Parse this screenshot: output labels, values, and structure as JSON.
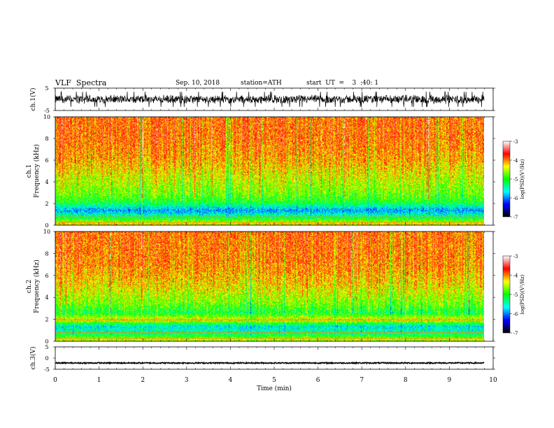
{
  "header": {
    "title": "VLF  Spectra",
    "date": "Sep. 10, 2018",
    "station": "station=ATH",
    "start_ut": "start  UT  =    3  :40: 1"
  },
  "colors": {
    "colormap": [
      "#000000",
      "#0000ff",
      "#00ffff",
      "#00ff00",
      "#ffff00",
      "#ff0000",
      "#ffffff"
    ],
    "background": "#ffffff",
    "waveform": "#000000"
  },
  "chart_data": [
    {
      "type": "line",
      "name": "ch1-waveform",
      "ylabel": "ch.1(V)",
      "ylim": [
        -5,
        5
      ],
      "y_ticks": [
        "5",
        "-5"
      ],
      "x": [
        0,
        10
      ],
      "description_of_signal": "",
      "noise_amplitude_v": 1.8,
      "offset_v": 0.0
    },
    {
      "type": "heatmap",
      "name": "ch1-spectrogram",
      "ylabel": "ch.1\nFrequency  (kHz)",
      "ylabel_lines": [
        "ch.1",
        "Frequency  (kHz)"
      ],
      "ylim": [
        0,
        10
      ],
      "y_ticks": [
        "0",
        "2",
        "4",
        "6",
        "8",
        "10"
      ],
      "x_range": [
        0,
        9.8
      ],
      "colorbar": {
        "label": "log(PSD)(V²/Hz)",
        "ticks": [
          "-3",
          "-4",
          "-5",
          "-6",
          "-7"
        ],
        "range": [
          -7,
          -3
        ]
      },
      "typical_levels": [
        {
          "f_khz": 0.2,
          "log_psd": -4.3
        },
        {
          "f_khz": 0.8,
          "log_psd": -5.3
        },
        {
          "f_khz": 1.4,
          "log_psd": -5.9
        },
        {
          "f_khz": 2.2,
          "log_psd": -5.0
        },
        {
          "f_khz": 3.0,
          "log_psd": -4.7
        },
        {
          "f_khz": 4.5,
          "log_psd": -4.4
        },
        {
          "f_khz": 6.0,
          "log_psd": -4.1
        },
        {
          "f_khz": 8.0,
          "log_psd": -3.9
        },
        {
          "f_khz": 10.0,
          "log_psd": -3.9
        }
      ]
    },
    {
      "type": "heatmap",
      "name": "ch2-spectrogram",
      "ylabel_lines": [
        "ch.2",
        "Frequency  (kHz)"
      ],
      "ylim": [
        0,
        10
      ],
      "y_ticks": [
        "0",
        "2",
        "4",
        "6",
        "8",
        "10"
      ],
      "x_range": [
        0,
        9.8
      ],
      "colorbar": {
        "label": "log(PSD)(V²/Hz)",
        "ticks": [
          "-3",
          "-4",
          "-5",
          "-6",
          "-7"
        ],
        "range": [
          -7,
          -3
        ]
      },
      "typical_levels": [
        {
          "f_khz": 0.2,
          "log_psd": -4.5
        },
        {
          "f_khz": 0.8,
          "log_psd": -5.4
        },
        {
          "f_khz": 1.4,
          "log_psd": -5.6
        },
        {
          "f_khz": 2.0,
          "log_psd": -4.3
        },
        {
          "f_khz": 2.6,
          "log_psd": -5.1
        },
        {
          "f_khz": 3.5,
          "log_psd": -4.7
        },
        {
          "f_khz": 5.0,
          "log_psd": -4.3
        },
        {
          "f_khz": 7.0,
          "log_psd": -4.0
        },
        {
          "f_khz": 10.0,
          "log_psd": -3.9
        }
      ]
    },
    {
      "type": "line",
      "name": "ch3-waveform",
      "ylabel": "ch.3(V)",
      "ylim": [
        -5,
        5
      ],
      "y_ticks": [
        "5",
        "0",
        "-5"
      ],
      "x": [
        0,
        9.8
      ],
      "noise_amplitude_v": 0.25,
      "offset_v": -2.2
    }
  ],
  "x_axis": {
    "label": "Time  (min)",
    "ticks": [
      "0",
      "1",
      "2",
      "3",
      "4",
      "5",
      "6",
      "7",
      "8",
      "9",
      "10"
    ],
    "range": [
      0,
      10
    ]
  }
}
